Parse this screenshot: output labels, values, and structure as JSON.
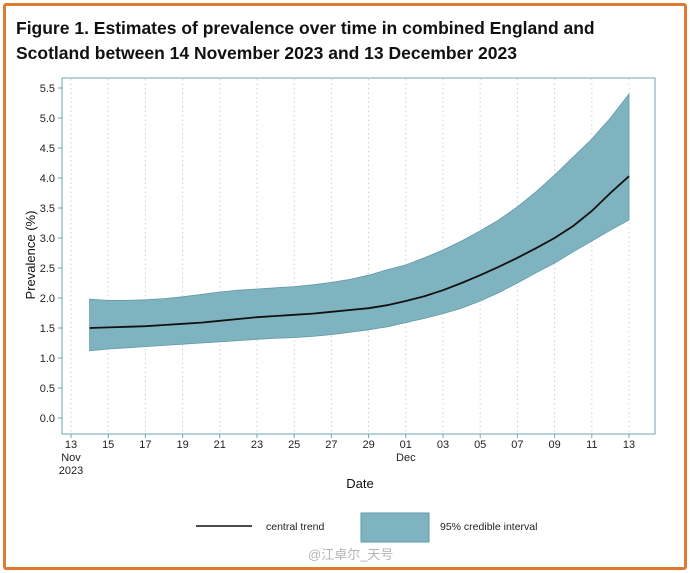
{
  "title": "Figure 1. Estimates of prevalence over time in combined England and Scotland between 14 November 2023 and 13 December 2023",
  "watermark": "@江卓尔_天号",
  "colors": {
    "band": "#7fb3c0",
    "band_edge": "#5f9aab",
    "line": "#111111",
    "frame": "#e07a2e",
    "axes": "#6fa3b3"
  },
  "chart_data": {
    "type": "area",
    "xlabel": "Date",
    "ylabel": "Prevalence (%)",
    "ylim": [
      0,
      5.5
    ],
    "yticks": [
      "0.0",
      "0.5",
      "1.0",
      "1.5",
      "2.0",
      "2.5",
      "3.0",
      "3.5",
      "4.0",
      "4.5",
      "5.0",
      "5.5"
    ],
    "grid": "vertical dotted",
    "xticks": [
      {
        "label": "13",
        "sub": [
          "Nov",
          "2023"
        ]
      },
      {
        "label": "15"
      },
      {
        "label": "17"
      },
      {
        "label": "19"
      },
      {
        "label": "21"
      },
      {
        "label": "23"
      },
      {
        "label": "25"
      },
      {
        "label": "27"
      },
      {
        "label": "29"
      },
      {
        "label": "01",
        "sub": [
          "Dec"
        ]
      },
      {
        "label": "03"
      },
      {
        "label": "05"
      },
      {
        "label": "07"
      },
      {
        "label": "09"
      },
      {
        "label": "11"
      },
      {
        "label": "13"
      }
    ],
    "x": [
      "2023-11-14",
      "2023-11-15",
      "2023-11-16",
      "2023-11-17",
      "2023-11-18",
      "2023-11-19",
      "2023-11-20",
      "2023-11-21",
      "2023-11-22",
      "2023-11-23",
      "2023-11-24",
      "2023-11-25",
      "2023-11-26",
      "2023-11-27",
      "2023-11-28",
      "2023-11-29",
      "2023-11-30",
      "2023-12-01",
      "2023-12-02",
      "2023-12-03",
      "2023-12-04",
      "2023-12-05",
      "2023-12-06",
      "2023-12-07",
      "2023-12-08",
      "2023-12-09",
      "2023-12-10",
      "2023-12-11",
      "2023-12-12",
      "2023-12-13"
    ],
    "series": [
      {
        "name": "central trend",
        "values": [
          1.5,
          1.51,
          1.52,
          1.53,
          1.55,
          1.57,
          1.59,
          1.62,
          1.65,
          1.68,
          1.7,
          1.72,
          1.74,
          1.77,
          1.8,
          1.83,
          1.88,
          1.95,
          2.03,
          2.13,
          2.25,
          2.38,
          2.52,
          2.67,
          2.83,
          3.0,
          3.2,
          3.45,
          3.75,
          4.03
        ]
      },
      {
        "name": "95% credible interval",
        "lower": [
          1.12,
          1.15,
          1.17,
          1.19,
          1.21,
          1.23,
          1.25,
          1.27,
          1.29,
          1.31,
          1.33,
          1.34,
          1.36,
          1.39,
          1.43,
          1.47,
          1.52,
          1.59,
          1.66,
          1.74,
          1.83,
          1.95,
          2.09,
          2.25,
          2.42,
          2.58,
          2.77,
          2.95,
          3.13,
          3.3
        ],
        "upper": [
          1.98,
          1.96,
          1.96,
          1.97,
          1.99,
          2.02,
          2.06,
          2.1,
          2.13,
          2.15,
          2.17,
          2.19,
          2.22,
          2.26,
          2.31,
          2.38,
          2.47,
          2.55,
          2.67,
          2.8,
          2.95,
          3.12,
          3.3,
          3.52,
          3.77,
          4.05,
          4.35,
          4.65,
          5.0,
          5.4
        ]
      }
    ],
    "legend_position": "bottom-center"
  }
}
